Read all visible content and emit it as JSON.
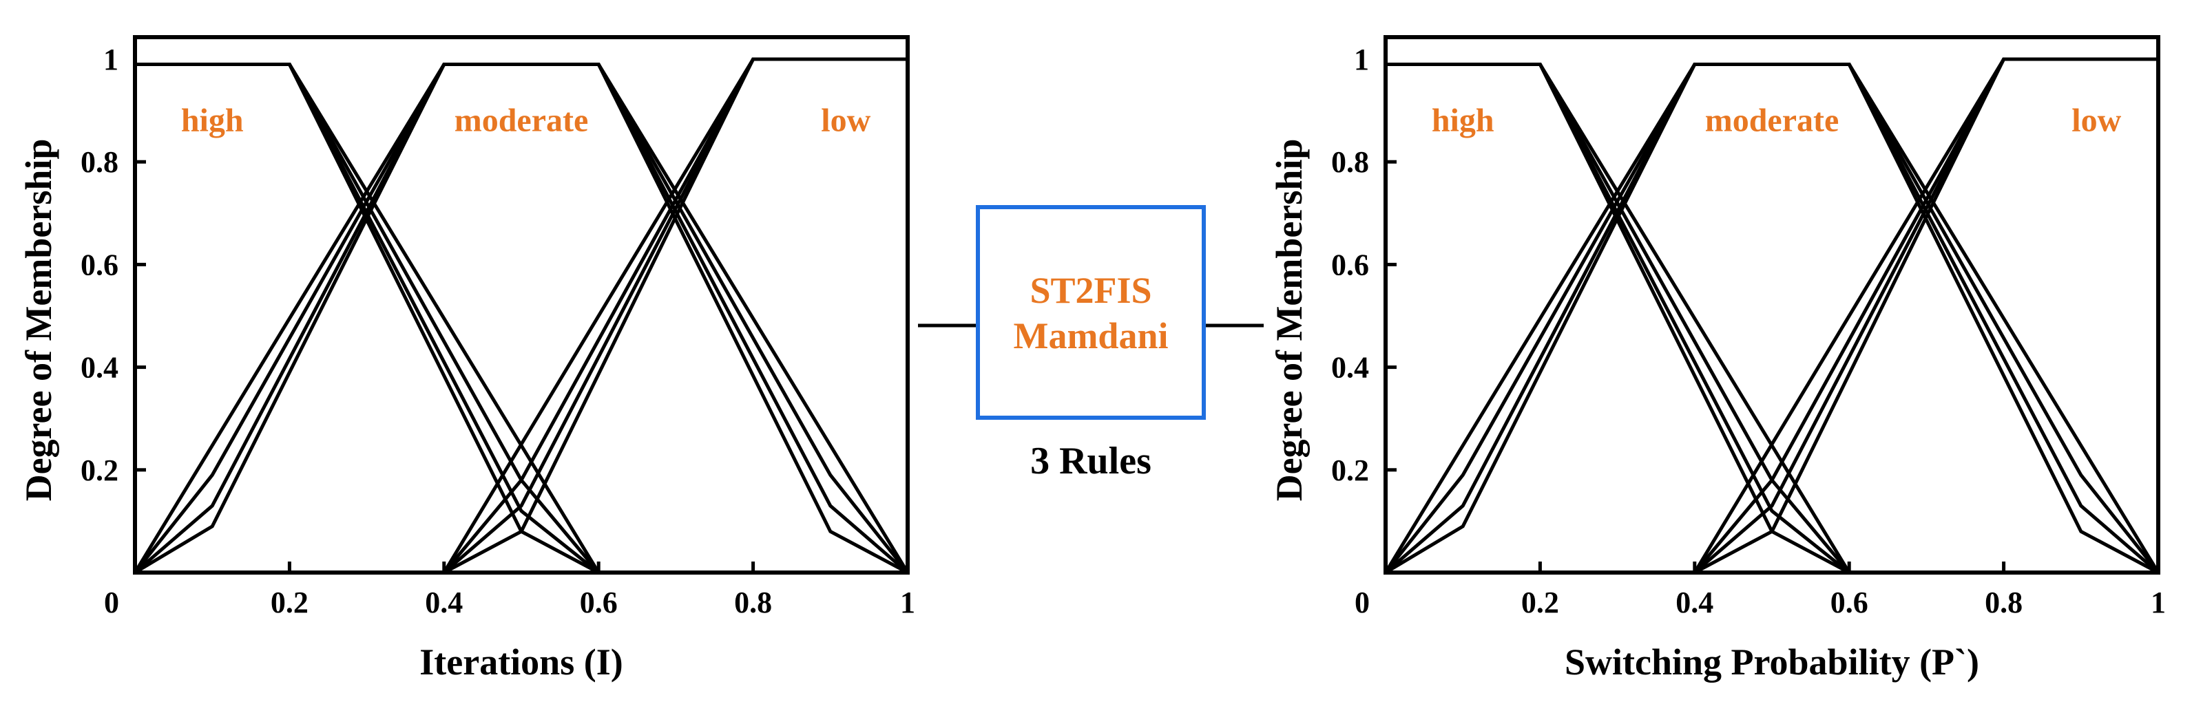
{
  "fis": {
    "line1": "ST2FIS",
    "line2": "Mamdani",
    "rules": "3 Rules"
  },
  "colors": {
    "accent_text": "#e87722",
    "box_border": "#1f6fe0",
    "lines": "#000000"
  },
  "chart_data": [
    {
      "type": "line",
      "xlabel": "Iterations  (I)",
      "ylabel": "Degree of Membership",
      "xlim": [
        0,
        1
      ],
      "ylim": [
        0,
        1
      ],
      "x_ticks": [
        {
          "value": 0,
          "label": "0"
        },
        {
          "value": 0.2,
          "label": "0.2"
        },
        {
          "value": 0.4,
          "label": "0.4"
        },
        {
          "value": 0.6,
          "label": "0.6"
        },
        {
          "value": 0.8,
          "label": "0.8"
        },
        {
          "value": 1,
          "label": "1"
        }
      ],
      "y_ticks": [
        {
          "value": 0.2,
          "label": "0.2"
        },
        {
          "value": 0.4,
          "label": "0.4"
        },
        {
          "value": 0.6,
          "label": "0.6"
        },
        {
          "value": 0.8,
          "label": "0.8"
        },
        {
          "value": 1,
          "label": "1"
        }
      ],
      "membership_labels": [
        {
          "text": "high",
          "x": 0.1,
          "y": 0.9
        },
        {
          "text": "moderate",
          "x": 0.5,
          "y": 0.9
        },
        {
          "text": "low",
          "x": 0.92,
          "y": 0.9
        }
      ],
      "series": [
        {
          "x": [
            0,
            0.2,
            0.6
          ],
          "y": [
            0.99,
            0.99,
            0
          ]
        },
        {
          "x": [
            0,
            0.2,
            0.5,
            0.6
          ],
          "y": [
            0.99,
            0.99,
            0.08,
            0
          ]
        },
        {
          "x": [
            0,
            0.2,
            0.5,
            0.6
          ],
          "y": [
            0.99,
            0.99,
            0.12,
            0
          ]
        },
        {
          "x": [
            0,
            0.2,
            0.5,
            0.6
          ],
          "y": [
            0.99,
            0.99,
            0.18,
            0
          ]
        },
        {
          "x": [
            0,
            0.4,
            0.6,
            1.0
          ],
          "y": [
            0,
            0.99,
            0.99,
            0
          ]
        },
        {
          "x": [
            0,
            0.1,
            0.4,
            0.6,
            0.9,
            1.0
          ],
          "y": [
            0,
            0.09,
            0.99,
            0.99,
            0.08,
            0
          ]
        },
        {
          "x": [
            0,
            0.1,
            0.4,
            0.6,
            0.9,
            1.0
          ],
          "y": [
            0,
            0.13,
            0.99,
            0.99,
            0.13,
            0
          ]
        },
        {
          "x": [
            0,
            0.1,
            0.4,
            0.6,
            0.9,
            1.0
          ],
          "y": [
            0,
            0.19,
            0.99,
            0.99,
            0.19,
            0
          ]
        },
        {
          "x": [
            0.4,
            0.8,
            1.0
          ],
          "y": [
            0,
            1.0,
            1.0
          ]
        },
        {
          "x": [
            0.4,
            0.5,
            0.8,
            1.0
          ],
          "y": [
            0,
            0.08,
            1.0,
            1.0
          ]
        },
        {
          "x": [
            0.4,
            0.5,
            0.8,
            1.0
          ],
          "y": [
            0,
            0.13,
            1.0,
            1.0
          ]
        },
        {
          "x": [
            0.4,
            0.5,
            0.8,
            1.0
          ],
          "y": [
            0,
            0.18,
            1.0,
            1.0
          ]
        }
      ]
    },
    {
      "type": "line",
      "xlabel": "Switching Probability  (P`)",
      "ylabel": "Degree of Membership",
      "xlim": [
        0,
        1
      ],
      "ylim": [
        0,
        1
      ],
      "x_ticks": [
        {
          "value": 0,
          "label": "0"
        },
        {
          "value": 0.2,
          "label": "0.2"
        },
        {
          "value": 0.4,
          "label": "0.4"
        },
        {
          "value": 0.6,
          "label": "0.6"
        },
        {
          "value": 0.8,
          "label": "0.8"
        },
        {
          "value": 1,
          "label": "1"
        }
      ],
      "y_ticks": [
        {
          "value": 0.2,
          "label": "0.2"
        },
        {
          "value": 0.4,
          "label": "0.4"
        },
        {
          "value": 0.6,
          "label": "0.6"
        },
        {
          "value": 0.8,
          "label": "0.8"
        },
        {
          "value": 1,
          "label": "1"
        }
      ],
      "membership_labels": [
        {
          "text": "high",
          "x": 0.1,
          "y": 0.9
        },
        {
          "text": "moderate",
          "x": 0.5,
          "y": 0.9
        },
        {
          "text": "low",
          "x": 0.92,
          "y": 0.9
        }
      ],
      "series": [
        {
          "x": [
            0,
            0.2,
            0.6
          ],
          "y": [
            0.99,
            0.99,
            0
          ]
        },
        {
          "x": [
            0,
            0.2,
            0.5,
            0.6
          ],
          "y": [
            0.99,
            0.99,
            0.08,
            0
          ]
        },
        {
          "x": [
            0,
            0.2,
            0.5,
            0.6
          ],
          "y": [
            0.99,
            0.99,
            0.12,
            0
          ]
        },
        {
          "x": [
            0,
            0.2,
            0.5,
            0.6
          ],
          "y": [
            0.99,
            0.99,
            0.18,
            0
          ]
        },
        {
          "x": [
            0,
            0.4,
            0.6,
            1.0
          ],
          "y": [
            0,
            0.99,
            0.99,
            0
          ]
        },
        {
          "x": [
            0,
            0.1,
            0.4,
            0.6,
            0.9,
            1.0
          ],
          "y": [
            0,
            0.09,
            0.99,
            0.99,
            0.08,
            0
          ]
        },
        {
          "x": [
            0,
            0.1,
            0.4,
            0.6,
            0.9,
            1.0
          ],
          "y": [
            0,
            0.13,
            0.99,
            0.99,
            0.13,
            0
          ]
        },
        {
          "x": [
            0,
            0.1,
            0.4,
            0.6,
            0.9,
            1.0
          ],
          "y": [
            0,
            0.19,
            0.99,
            0.99,
            0.19,
            0
          ]
        },
        {
          "x": [
            0.4,
            0.8,
            1.0
          ],
          "y": [
            0,
            1.0,
            1.0
          ]
        },
        {
          "x": [
            0.4,
            0.5,
            0.8,
            1.0
          ],
          "y": [
            0,
            0.08,
            1.0,
            1.0
          ]
        },
        {
          "x": [
            0.4,
            0.5,
            0.8,
            1.0
          ],
          "y": [
            0,
            0.13,
            1.0,
            1.0
          ]
        },
        {
          "x": [
            0.4,
            0.5,
            0.8,
            1.0
          ],
          "y": [
            0,
            0.18,
            1.0,
            1.0
          ]
        }
      ]
    }
  ]
}
